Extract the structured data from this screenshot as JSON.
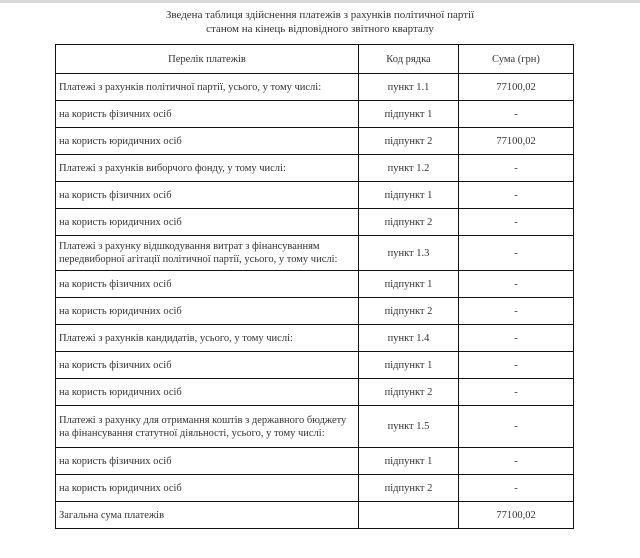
{
  "title": {
    "line1": "Зведена таблиця здійснення платежів з рахунків політичної партії",
    "line2": "станом на кінець відповідного звітного кварталу"
  },
  "table": {
    "headers": [
      "Перелік платежів",
      "Код рядка",
      "Сума (грн)"
    ],
    "rows": [
      {
        "name": "Платежі з рахунків політичної партії, усього,  у тому числі:",
        "code": "пункт 1.1",
        "sum": "77100,02"
      },
      {
        "name": "на користь фізичних осіб",
        "code": "підпункт 1",
        "sum": "-"
      },
      {
        "name": "на користь юридичних осіб",
        "code": "підпункт 2",
        "sum": "77100,02"
      },
      {
        "name": "Платежі з рахунків виборчого фонду,  у тому числі:",
        "code": "пункт 1.2",
        "sum": "-"
      },
      {
        "name": "на користь фізичних осіб",
        "code": "підпункт 1",
        "sum": "-"
      },
      {
        "name": "на користь юридичних осіб",
        "code": "підпункт 2",
        "sum": "-"
      },
      {
        "name": "Платежі з рахунку відшкодування витрат з фінансуванням передвиборної агітації політичної партії, усього, у тому числі:",
        "code": "пункт 1.3",
        "sum": "-"
      },
      {
        "name": "на користь фізичних осіб",
        "code": "підпункт 1",
        "sum": "-"
      },
      {
        "name": "на користь юридичних осіб",
        "code": "підпункт 2",
        "sum": "-"
      },
      {
        "name": "Платежі з рахунків кандидатів, усього, у тому числі:",
        "code": "пункт 1.4",
        "sum": "-"
      },
      {
        "name": "на користь фізичних осіб",
        "code": "підпункт 1",
        "sum": "-"
      },
      {
        "name": "на користь юридичних осіб",
        "code": "підпункт 2",
        "sum": "-"
      },
      {
        "name": "Платежі з рахунку для отримання коштів з державного бюджету на фінансування статутної діяльності, усього, у тому числі:",
        "code": "пункт 1.5",
        "sum": "-"
      },
      {
        "name": "на користь фізичних осіб",
        "code": "підпункт 1",
        "sum": "-"
      },
      {
        "name": "на користь юридичних осіб",
        "code": "підпункт 2",
        "sum": "-"
      },
      {
        "name": "Загальна сума платежів",
        "code": "",
        "sum": "77100,02"
      }
    ]
  }
}
